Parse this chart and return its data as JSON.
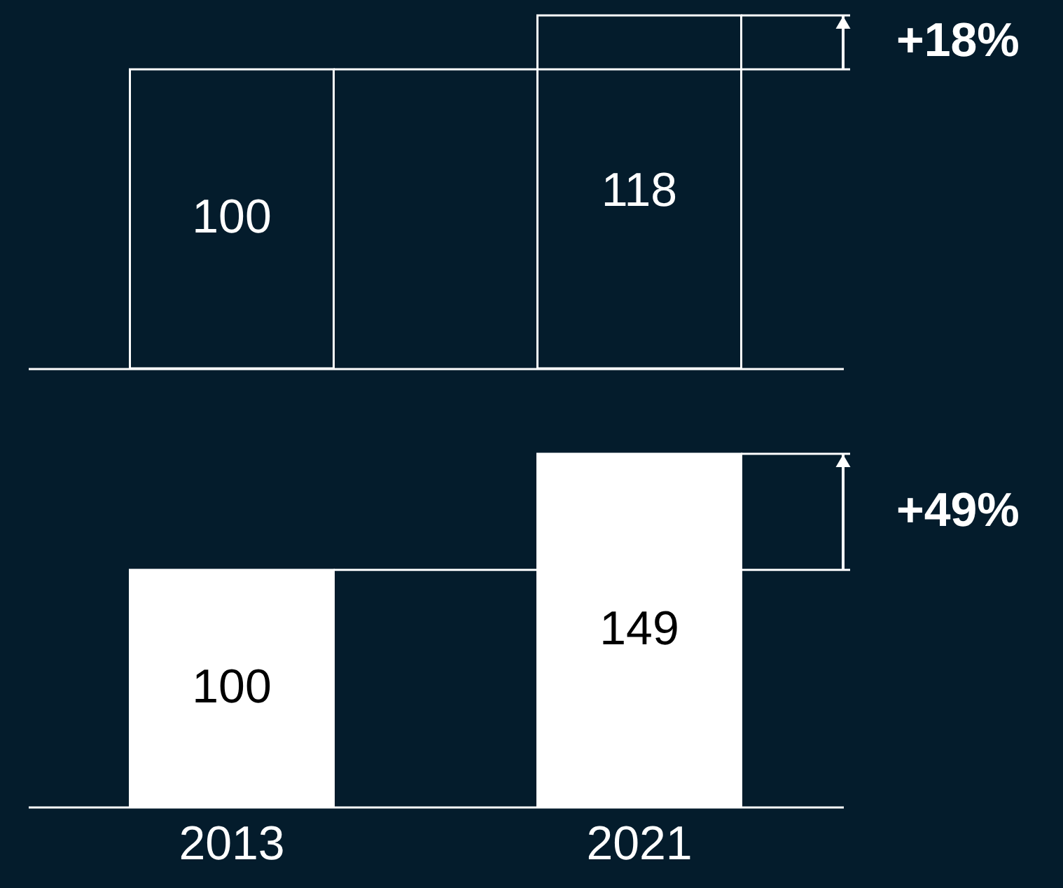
{
  "chart_data": [
    {
      "type": "bar",
      "categories": [
        "2013",
        "2021"
      ],
      "series": [
        {
          "color": "#041c2c",
          "values": [
            100,
            118
          ]
        }
      ],
      "data_labels": true,
      "tick_labels": false,
      "annotations": [
        "+18%"
      ]
    },
    {
      "type": "bar",
      "categories": [
        "2013",
        "2021"
      ],
      "series": [
        {
          "color": "#ffffff",
          "values": [
            100,
            149
          ]
        }
      ],
      "data_labels": true,
      "tick_labels": "x",
      "annotations": [
        "+49%"
      ]
    }
  ]
}
